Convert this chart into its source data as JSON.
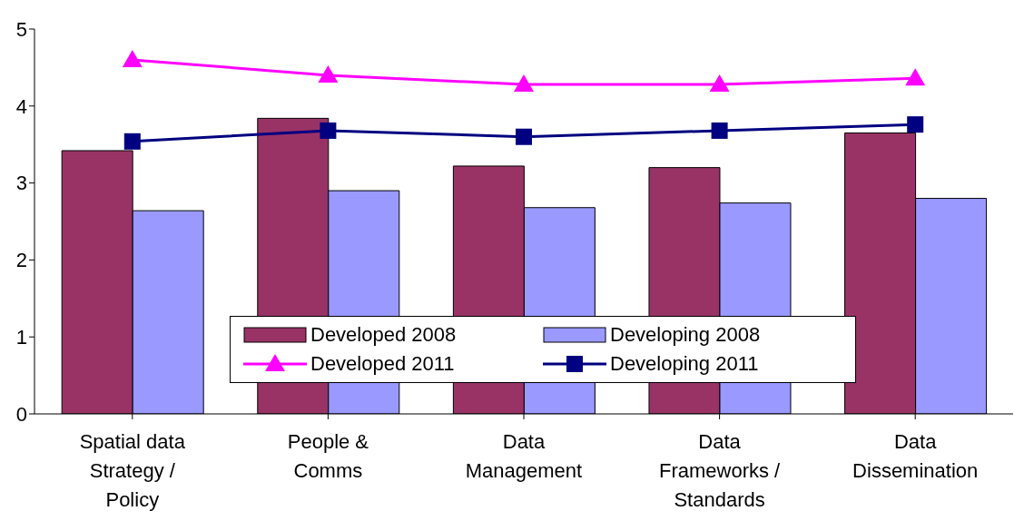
{
  "chart_data": {
    "type": "bar",
    "categories": [
      "Spatial data Strategy / Policy",
      "People & Comms",
      "Data Management",
      "Data Frameworks / Standards",
      "Data Dissemination"
    ],
    "series": [
      {
        "name": "Developed 2008",
        "color": "#993366",
        "values": [
          3.42,
          3.84,
          3.22,
          3.2,
          3.65
        ]
      },
      {
        "name": "Developing 2008",
        "color": "#9999ff",
        "values": [
          2.64,
          2.9,
          2.68,
          2.74,
          2.8
        ]
      },
      {
        "name": "Developed 2011",
        "type": "line",
        "color": "#ff00ff",
        "marker": "triangle",
        "values": [
          4.6,
          4.4,
          4.28,
          4.28,
          4.36
        ]
      },
      {
        "name": "Developing 2011",
        "type": "line",
        "color": "#000080",
        "marker": "square",
        "values": [
          3.54,
          3.68,
          3.6,
          3.68,
          3.76
        ]
      }
    ],
    "ylim": [
      0,
      5
    ],
    "yticks": [
      0,
      1,
      2,
      3,
      4,
      5
    ],
    "grid": false,
    "legend": "bottom"
  }
}
